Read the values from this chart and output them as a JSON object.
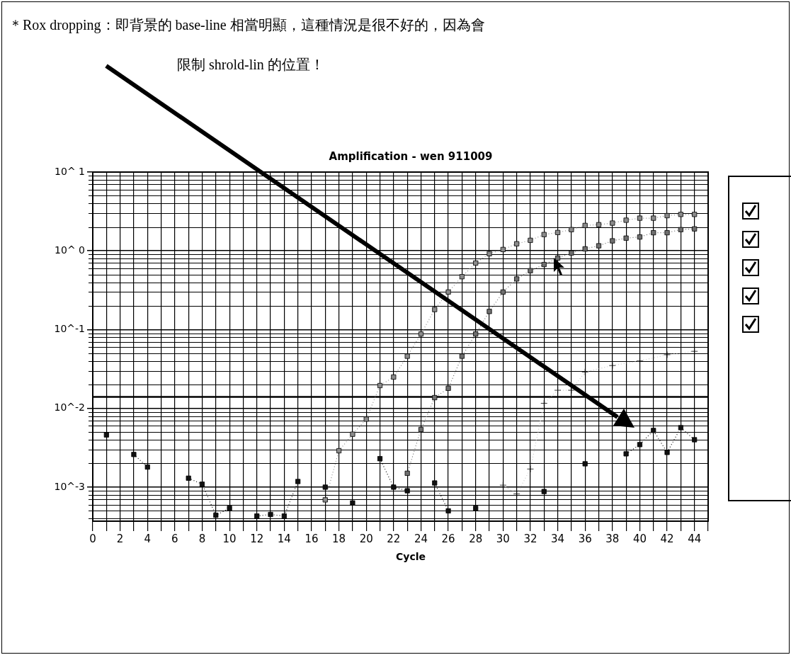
{
  "chart_data": {
    "type": "line",
    "title": "Amplification - wen 911009",
    "xlabel": "Cycle",
    "annotations": [
      "＊Rox dropping：即背景的 base-line 相當明顯，這種情況是很不好的，因為會",
      "限制 shrold-lin 的位置！"
    ],
    "xlim": [
      0,
      45
    ],
    "xticks": [
      0,
      {
        "value": 1,
        "label": null
      },
      2,
      {
        "value": 3,
        "label": null
      },
      4,
      {
        "value": 5,
        "label": null
      },
      6,
      {
        "value": 7,
        "label": null
      },
      8,
      {
        "value": 9,
        "label": null
      },
      10,
      {
        "value": 11,
        "label": null
      },
      12,
      {
        "value": 13,
        "label": null
      },
      14,
      {
        "value": 15,
        "label": null
      },
      16,
      {
        "value": 17,
        "label": null
      },
      18,
      {
        "value": 19,
        "label": null
      },
      20,
      {
        "value": 21,
        "label": null
      },
      22,
      {
        "value": 23,
        "label": null
      },
      24,
      {
        "value": 25,
        "label": null
      },
      26,
      {
        "value": 27,
        "label": null
      },
      28,
      {
        "value": 29,
        "label": null
      },
      30,
      {
        "value": 31,
        "label": null
      },
      32,
      {
        "value": 33,
        "label": null
      },
      34,
      {
        "value": 35,
        "label": null
      },
      36,
      {
        "value": 37,
        "label": null
      },
      38,
      {
        "value": 39,
        "label": null
      },
      40,
      {
        "value": 41,
        "label": null
      },
      42,
      {
        "value": 43,
        "label": null
      },
      44,
      {
        "value": 45,
        "label": null
      }
    ],
    "ylim": [
      0.00037,
      10
    ],
    "log": true,
    "yticks": [
      {
        "value": 10,
        "label": "10^ 1"
      },
      {
        "value": 1,
        "label": "10^ 0"
      },
      {
        "value": 0.1,
        "label": "10^-1"
      },
      {
        "value": 0.01,
        "label": "10^-2"
      },
      {
        "value": 0.001,
        "label": "10^-3"
      }
    ],
    "grid": true,
    "marker": "square",
    "line_style": "dotted",
    "ref_lines": [
      {
        "axis": "y",
        "value": 0.014,
        "color": "#000000"
      }
    ],
    "series": [
      {
        "color": "#8a8a8a",
        "x": [
          17,
          18,
          19,
          20,
          21,
          22,
          23,
          24,
          25,
          26,
          27,
          28,
          29,
          30,
          31,
          32,
          33,
          34,
          35,
          36,
          37,
          38,
          39,
          40,
          41,
          42,
          43,
          44
        ],
        "values": [
          0.00069,
          0.0029,
          0.0047,
          0.0073,
          0.0195,
          0.025,
          0.046,
          0.088,
          0.18,
          0.3,
          0.47,
          0.7,
          0.92,
          1.04,
          1.23,
          1.36,
          1.61,
          1.71,
          1.86,
          2.1,
          2.15,
          2.25,
          2.45,
          2.6,
          2.6,
          2.8,
          2.9,
          2.9
        ]
      },
      {
        "color": "#6e6e6e",
        "x": [
          23,
          24,
          25,
          26,
          27,
          28,
          29,
          30,
          31,
          32,
          33,
          34,
          35,
          36,
          37,
          38,
          39,
          40,
          41,
          42,
          43,
          44
        ],
        "values": [
          0.0015,
          0.0054,
          0.0137,
          0.018,
          0.046,
          0.088,
          0.17,
          0.3,
          0.44,
          0.56,
          0.67,
          0.81,
          0.94,
          1.06,
          1.16,
          1.34,
          1.45,
          1.5,
          1.7,
          1.7,
          1.86,
          1.9
        ]
      },
      {
        "color": "#111111",
        "x": [
          1,
          2,
          3,
          4,
          5,
          6,
          7,
          8,
          9,
          10,
          11,
          12,
          13,
          14,
          15,
          16,
          17,
          18,
          19,
          20,
          21,
          22,
          23,
          24,
          25,
          26,
          27,
          28,
          29,
          30,
          31,
          32,
          33,
          34,
          35,
          36,
          37,
          38,
          39,
          40,
          41,
          42,
          43,
          44
        ],
        "values": [
          0.0046,
          null,
          0.0026,
          0.0018,
          null,
          null,
          0.0013,
          0.00109,
          0.00044,
          0.00054,
          null,
          0.00043,
          0.00045,
          0.00043,
          0.00118,
          null,
          0.001,
          null,
          0.00063,
          null,
          0.0023,
          0.001,
          0.0009,
          null,
          0.00113,
          0.0005,
          null,
          0.00054,
          null,
          null,
          null,
          null,
          0.00088,
          null,
          null,
          0.00198,
          null,
          null,
          0.00265,
          0.00347,
          0.00525,
          0.00276,
          0.0057,
          0.004
        ]
      },
      {
        "color": "#c8c8c8",
        "marker": "cross",
        "x": [
          30,
          31,
          32,
          33,
          34,
          35,
          36,
          38,
          40,
          42,
          44
        ],
        "values": [
          0.00106,
          0.00082,
          0.0017,
          0.0116,
          0.017,
          0.017,
          0.029,
          0.035,
          0.04,
          0.048,
          0.053
        ]
      }
    ]
  }
}
